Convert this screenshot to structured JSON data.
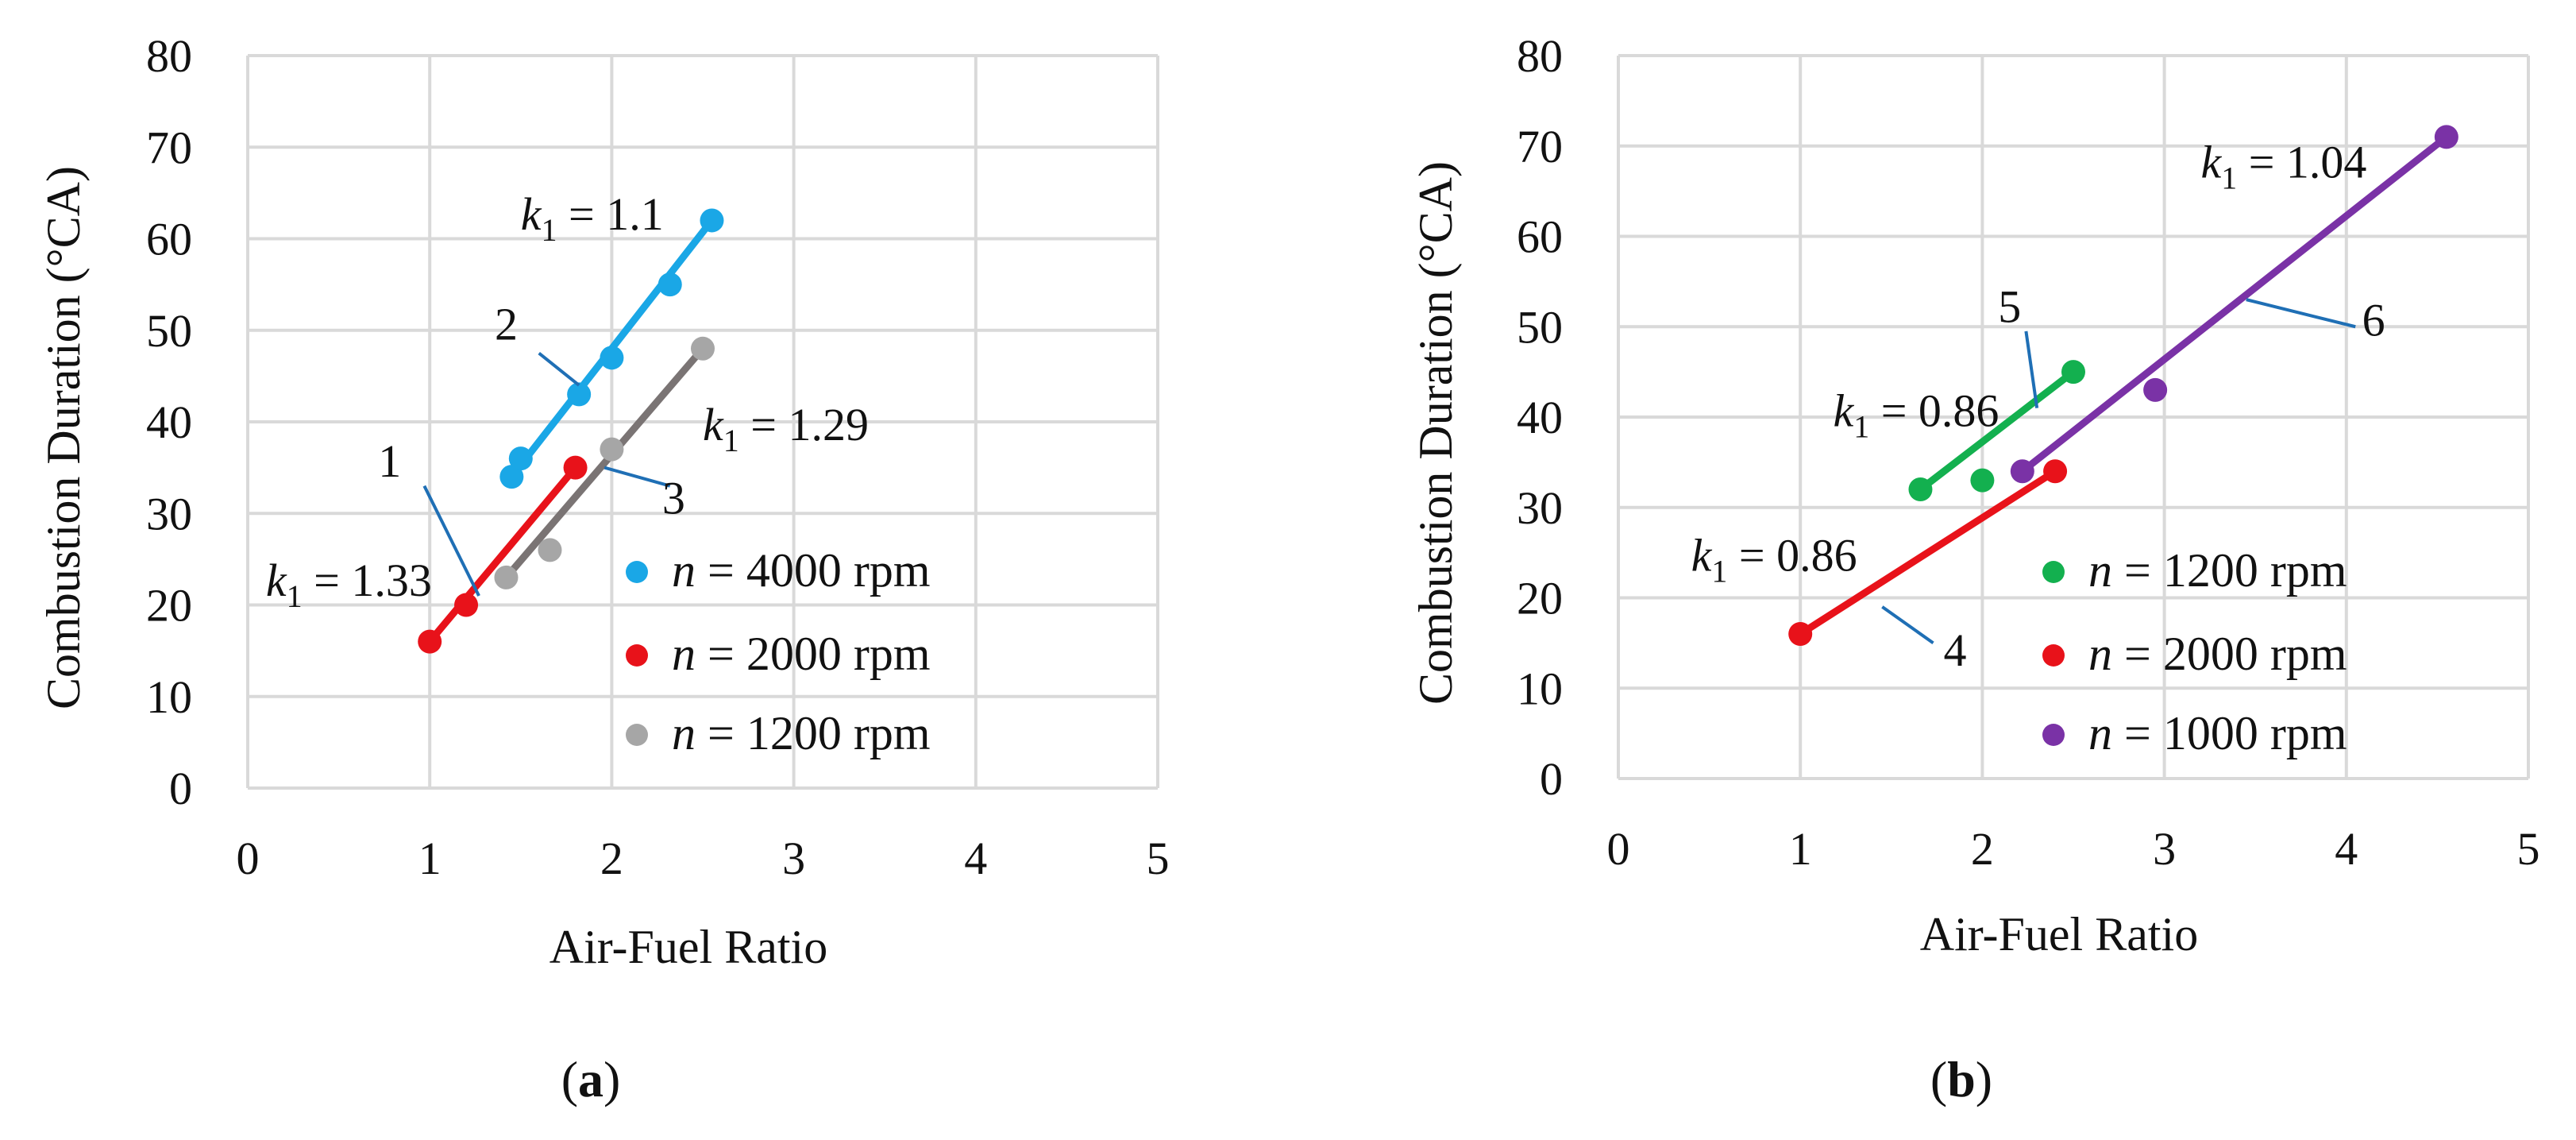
{
  "chart_data": [
    {
      "type": "scatter",
      "xlabel": "Air-Fuel Ratio",
      "ylabel": "Combustion Duration (°CA)",
      "xlim": [
        0,
        5
      ],
      "ylim": [
        0,
        80
      ],
      "xticks": [
        0,
        1,
        2,
        3,
        4,
        5
      ],
      "yticks": [
        0,
        10,
        20,
        30,
        40,
        50,
        60,
        70,
        80
      ],
      "grid": true,
      "legend_position": "bottom-right",
      "panel_label": {
        "open": "(",
        "bold": "a",
        "close": ")"
      },
      "series": [
        {
          "name": "n = 4000 rpm",
          "name_parts": {
            "var": "n",
            "rest": " = 4000 rpm"
          },
          "color": "#1aa7e6",
          "points": [
            [
              1.45,
              34
            ],
            [
              1.5,
              36
            ],
            [
              1.82,
              43
            ],
            [
              2.0,
              47
            ],
            [
              2.32,
              55
            ],
            [
              2.55,
              62
            ]
          ],
          "fit": [
            [
              1.45,
              34
            ],
            [
              2.55,
              62
            ]
          ]
        },
        {
          "name": "n = 2000 rpm",
          "name_parts": {
            "var": "n",
            "rest": " = 2000 rpm"
          },
          "color": "#e8121a",
          "points": [
            [
              1.0,
              16
            ],
            [
              1.2,
              20
            ],
            [
              1.8,
              35
            ]
          ],
          "fit": [
            [
              1.0,
              16
            ],
            [
              1.8,
              35
            ]
          ]
        },
        {
          "name": "n = 1200 rpm",
          "name_parts": {
            "var": "n",
            "rest": " = 1200 rpm"
          },
          "color": "#a6a6a6",
          "line_color": "#7a7474",
          "points": [
            [
              1.42,
              23
            ],
            [
              1.66,
              26
            ],
            [
              2.0,
              37
            ],
            [
              2.5,
              48
            ]
          ],
          "fit": [
            [
              1.42,
              23
            ],
            [
              2.5,
              48
            ]
          ]
        }
      ],
      "annotations": [
        {
          "k_main": "k",
          "k_sub": "1",
          "rest": " = 1.1",
          "x": 1.5,
          "y": 61
        },
        {
          "k_main": "k",
          "k_sub": "1",
          "rest": " = 1.29",
          "x": 2.5,
          "y": 38
        },
        {
          "k_main": "k",
          "k_sub": "1",
          "rest": " = 1.33",
          "x": 0.1,
          "y": 21
        }
      ],
      "callouts": [
        {
          "label": "1",
          "text_at": [
            0.78,
            34
          ],
          "from": [
            0.97,
            33
          ],
          "to": [
            1.27,
            21
          ]
        },
        {
          "label": "2",
          "text_at": [
            1.42,
            49
          ],
          "from": [
            1.6,
            47.5
          ],
          "to": [
            1.82,
            44
          ]
        },
        {
          "label": "3",
          "text_at": [
            2.34,
            30
          ],
          "from": [
            2.32,
            33
          ],
          "to": [
            1.96,
            35
          ]
        }
      ]
    },
    {
      "type": "scatter",
      "xlabel": "Air-Fuel Ratio",
      "ylabel": "Combustion Duration (°CA)",
      "xlim": [
        0,
        5
      ],
      "ylim": [
        0,
        80
      ],
      "xticks": [
        0,
        1,
        2,
        3,
        4,
        5
      ],
      "yticks": [
        0,
        10,
        20,
        30,
        40,
        50,
        60,
        70,
        80
      ],
      "grid": true,
      "legend_position": "bottom-right",
      "panel_label": {
        "open": "(",
        "bold": "b",
        "close": ")"
      },
      "series": [
        {
          "name": "n = 1200 rpm",
          "name_parts": {
            "var": "n",
            "rest": " = 1200 rpm"
          },
          "color": "#13b04f",
          "points": [
            [
              1.66,
              32
            ],
            [
              2.0,
              33
            ],
            [
              2.5,
              45
            ]
          ],
          "fit": [
            [
              1.66,
              32
            ],
            [
              2.5,
              45
            ]
          ]
        },
        {
          "name": "n = 2000 rpm",
          "name_parts": {
            "var": "n",
            "rest": " = 2000 rpm"
          },
          "color": "#e8121a",
          "points": [
            [
              1.0,
              16
            ],
            [
              2.4,
              34
            ]
          ],
          "fit": [
            [
              1.0,
              16
            ],
            [
              2.4,
              34
            ]
          ]
        },
        {
          "name": "n = 1000 rpm",
          "name_parts": {
            "var": "n",
            "rest": " = 1000 rpm"
          },
          "color": "#7a32a6",
          "points": [
            [
              2.22,
              34
            ],
            [
              2.95,
              43
            ],
            [
              4.55,
              71
            ]
          ],
          "fit": [
            [
              2.22,
              34
            ],
            [
              4.55,
              71
            ]
          ]
        }
      ],
      "annotations": [
        {
          "k_main": "k",
          "k_sub": "1",
          "rest": " = 1.04",
          "x": 3.2,
          "y": 66.5
        },
        {
          "k_main": "k",
          "k_sub": "1",
          "rest": " = 0.86",
          "x": 1.18,
          "y": 39
        },
        {
          "k_main": "k",
          "k_sub": "1",
          "rest": " = 0.86",
          "x": 0.4,
          "y": 23
        }
      ],
      "callouts": [
        {
          "label": "4",
          "text_at": [
            1.85,
            12.5
          ],
          "from": [
            1.73,
            15
          ],
          "to": [
            1.45,
            19
          ]
        },
        {
          "label": "5",
          "text_at": [
            2.15,
            50.5
          ],
          "from": [
            2.24,
            49.5
          ],
          "to": [
            2.3,
            41
          ]
        },
        {
          "label": "6",
          "text_at": [
            4.15,
            49
          ],
          "from": [
            4.05,
            50
          ],
          "to": [
            3.45,
            53
          ]
        }
      ]
    }
  ]
}
